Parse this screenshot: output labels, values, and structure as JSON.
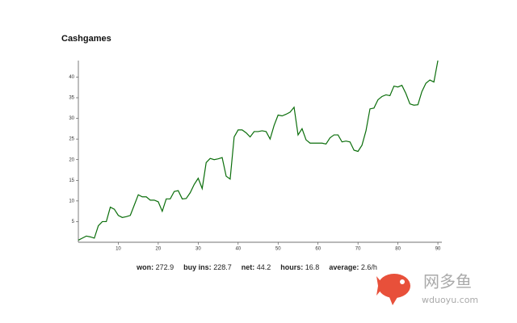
{
  "chart_data": {
    "type": "line",
    "title": "Cashgames",
    "x": [
      0,
      1,
      2,
      3,
      4,
      5,
      6,
      7,
      8,
      9,
      10,
      11,
      12,
      13,
      14,
      15,
      16,
      17,
      18,
      19,
      20,
      21,
      22,
      23,
      24,
      25,
      26,
      27,
      28,
      29,
      30,
      31,
      32,
      33,
      34,
      35,
      36,
      37,
      38,
      39,
      40,
      41,
      42,
      43,
      44,
      45,
      46,
      47,
      48,
      49,
      50,
      51,
      52,
      53,
      54,
      55,
      56,
      57,
      58,
      59,
      60,
      61,
      62,
      63,
      64,
      65,
      66,
      67,
      68,
      69,
      70,
      71,
      72,
      73,
      74,
      75,
      76,
      77,
      78,
      79,
      80,
      81,
      82,
      83,
      84,
      85,
      86,
      87,
      88,
      89,
      90
    ],
    "series": [
      {
        "color": "#0b6e0b",
        "values": [
          0.5,
          1,
          1.5,
          1.3,
          1,
          4,
          5,
          5,
          8.5,
          8,
          6.5,
          6,
          6.2,
          6.5,
          9,
          11.5,
          11,
          11,
          10.2,
          10.2,
          9.8,
          7.5,
          10.5,
          10.5,
          12.3,
          12.5,
          10.5,
          10.6,
          12,
          14,
          15.5,
          13,
          19.3,
          20.3,
          20,
          20.2,
          20.5,
          16,
          15.3,
          25.5,
          27.2,
          27.2,
          26.5,
          25.5,
          26.8,
          26.8,
          27,
          26.8,
          25,
          28.3,
          30.8,
          30.6,
          31,
          31.5,
          32.7,
          26,
          27.5,
          24.8,
          24,
          24,
          24,
          24,
          23.8,
          25.3,
          26,
          26,
          24.3,
          24.5,
          24.3,
          22.3,
          22,
          23.5,
          27,
          32.3,
          32.5,
          34.5,
          35.3,
          35.7,
          35.5,
          37.8,
          37.6,
          38,
          36,
          33.5,
          33.2,
          33.3,
          36.5,
          38.5,
          39.3,
          38.8,
          44
        ]
      }
    ],
    "xlim": [
      0,
      91
    ],
    "ylim": [
      0,
      44
    ],
    "xticks": [
      10,
      20,
      30,
      40,
      50,
      60,
      70,
      80,
      90
    ],
    "yticks": [
      5,
      10,
      15,
      20,
      25,
      30,
      35,
      40
    ]
  },
  "stats": [
    {
      "label": "won:",
      "value": "272.9"
    },
    {
      "label": "buy ins:",
      "value": "228.7"
    },
    {
      "label": "net:",
      "value": "44.2"
    },
    {
      "label": "hours:",
      "value": "16.8"
    },
    {
      "label": "average:",
      "value": "2.6/h"
    }
  ],
  "watermark": {
    "name": "网多鱼",
    "url": "wduoyu.com"
  }
}
